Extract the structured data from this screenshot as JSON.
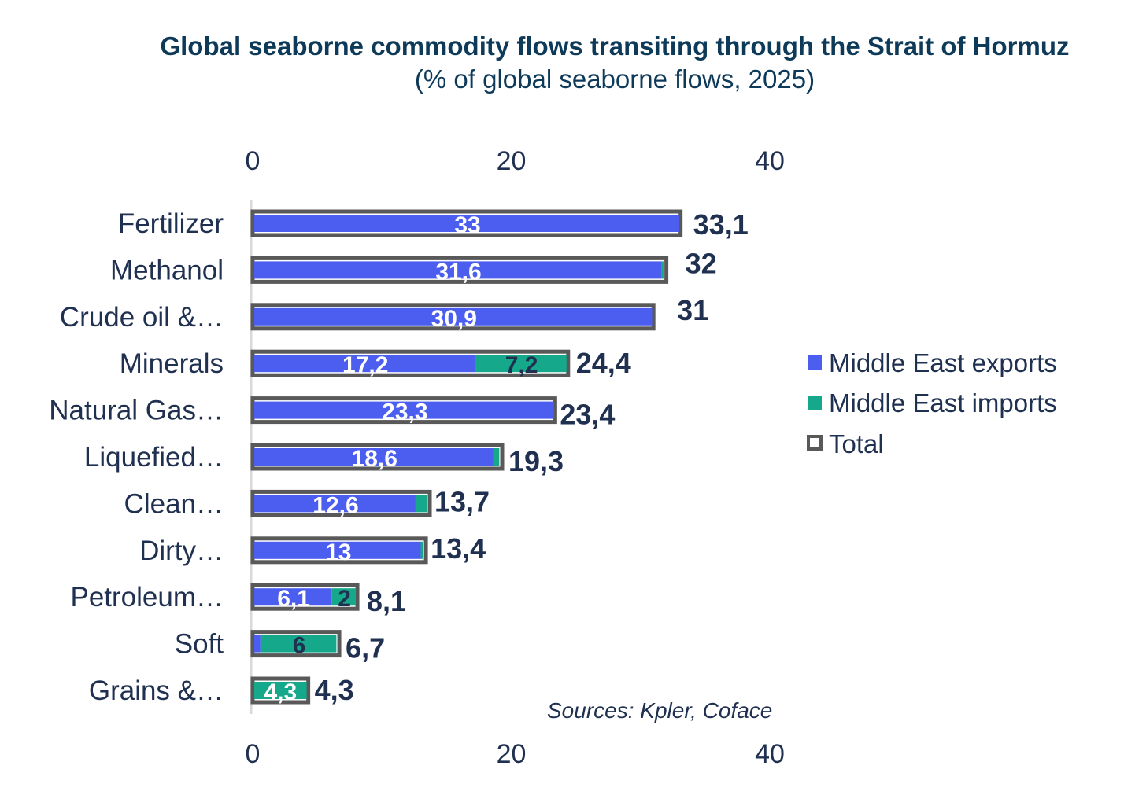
{
  "chart_data": {
    "type": "bar",
    "orientation": "horizontal",
    "stacked": true,
    "title": "Global seaborne commodity flows transiting through the Strait of Hormuz",
    "subtitle": "(% of global seaborne flows, 2025)",
    "categories": [
      "Fertilizer",
      "Methanol",
      "Crude oil &…",
      "Minerals",
      "Natural Gas…",
      "Liquefied…",
      "Clean…",
      "Dirty…",
      "Petroleum…",
      "Soft",
      "Grains &…"
    ],
    "series": [
      {
        "name": "Middle East exports",
        "color": "#4b5ef0",
        "values": [
          33,
          31.6,
          30.9,
          17.2,
          23.3,
          18.6,
          12.6,
          13,
          6.1,
          0.6,
          0
        ],
        "labels": [
          "33",
          "31,6",
          "30,9",
          "17,2",
          "23,3",
          "18,6",
          "12,6",
          "13",
          "6,1",
          "",
          ""
        ]
      },
      {
        "name": "Middle East imports",
        "color": "#16a88a",
        "values": [
          0,
          0.3,
          0,
          7.2,
          0,
          0.6,
          1.0,
          0.3,
          2,
          6,
          4.3
        ],
        "labels": [
          "",
          "",
          "",
          "7,2",
          "",
          "",
          "",
          "",
          "2",
          "6",
          "4,3"
        ]
      },
      {
        "name": "Total",
        "color": "#595959",
        "values": [
          33.1,
          32,
          31,
          24.4,
          23.4,
          19.3,
          13.7,
          13.4,
          8.1,
          6.7,
          4.3
        ],
        "labels": [
          "33,1",
          "32",
          "31",
          "24,4",
          "23,4",
          "19,3",
          "13,7",
          "13,4",
          "8,1",
          "6,7",
          "4,3"
        ]
      }
    ],
    "xlim": [
      0,
      40
    ],
    "xticks": [
      "0",
      "20",
      "40"
    ],
    "grid": false,
    "legend_position": "right"
  },
  "source": "Sources: Kpler, Coface"
}
